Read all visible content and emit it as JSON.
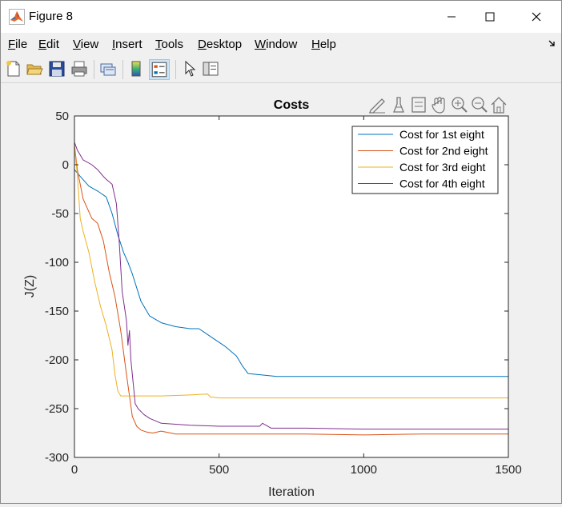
{
  "window": {
    "title": "Figure 8"
  },
  "menu": [
    {
      "label": "File",
      "accel": "F",
      "rest": "ile"
    },
    {
      "label": "Edit",
      "accel": "E",
      "rest": "dit"
    },
    {
      "label": "View",
      "accel": "V",
      "rest": "iew"
    },
    {
      "label": "Insert",
      "accel": "I",
      "rest": "nsert"
    },
    {
      "label": "Tools",
      "accel": "T",
      "rest": "ools"
    },
    {
      "label": "Desktop",
      "accel": "D",
      "rest": "esktop"
    },
    {
      "label": "Window",
      "accel": "W",
      "rest": "indow"
    },
    {
      "label": "Help",
      "accel": "H",
      "rest": "elp"
    }
  ],
  "toolbar": {
    "icons": [
      "new-figure-icon",
      "open-file-icon",
      "save-icon",
      "print-icon",
      "link-plot-icon",
      "colorbar-icon",
      "legend-icon",
      "pointer-icon",
      "property-inspector-icon"
    ]
  },
  "axes_toolbar": {
    "icons": [
      "edit-plot-icon",
      "brush-icon",
      "data-tips-icon",
      "pan-icon",
      "zoom-in-icon",
      "zoom-out-icon",
      "restore-view-icon"
    ]
  },
  "chart_data": {
    "type": "line",
    "title": "Costs",
    "xlabel": "Iteration",
    "ylabel": "J(Z)",
    "xlim": [
      0,
      1500
    ],
    "ylim": [
      -300,
      50
    ],
    "xticks": [
      0,
      500,
      1000,
      1500
    ],
    "yticks": [
      50,
      0,
      -50,
      -100,
      -150,
      -200,
      -250,
      -300
    ],
    "grid": false,
    "legend_position": "top-right",
    "series": [
      {
        "name": "Cost for 1st eight",
        "color": "#0072BD",
        "x": [
          0,
          20,
          50,
          80,
          110,
          130,
          150,
          170,
          185,
          200,
          230,
          260,
          300,
          350,
          400,
          430,
          450,
          480,
          520,
          560,
          580,
          600,
          700,
          900,
          1100,
          1300,
          1500
        ],
        "y": [
          -5,
          -12,
          -22,
          -27,
          -33,
          -50,
          -72,
          -90,
          -100,
          -112,
          -140,
          -155,
          -162,
          -166,
          -168,
          -168,
          -172,
          -178,
          -186,
          -196,
          -206,
          -214,
          -217,
          -217,
          -217,
          -217,
          -217
        ]
      },
      {
        "name": "Cost for 2nd eight",
        "color": "#D95319",
        "x": [
          0,
          10,
          30,
          60,
          80,
          100,
          120,
          140,
          160,
          180,
          200,
          215,
          230,
          250,
          270,
          300,
          350,
          400,
          600,
          800,
          1000,
          1200,
          1500
        ],
        "y": [
          20,
          -5,
          -35,
          -55,
          -60,
          -78,
          -110,
          -135,
          -170,
          -215,
          -258,
          -268,
          -272,
          -274,
          -275,
          -273,
          -276,
          -276,
          -276,
          -276,
          -277,
          -276,
          -276
        ]
      },
      {
        "name": "Cost for 3rd eight",
        "color": "#EDB120",
        "x": [
          0,
          10,
          20,
          30,
          50,
          70,
          90,
          110,
          130,
          140,
          150,
          160,
          170,
          200,
          300,
          400,
          460,
          470,
          500,
          700,
          1000,
          1500
        ],
        "y": [
          18,
          -10,
          -55,
          -68,
          -90,
          -120,
          -145,
          -165,
          -190,
          -215,
          -232,
          -237,
          -237,
          -237,
          -237,
          -236,
          -235,
          -238,
          -239,
          -239,
          -239,
          -239
        ]
      },
      {
        "name": "Cost for 4th eight",
        "color": "#7E2F8E",
        "x": [
          0,
          10,
          30,
          60,
          80,
          100,
          110,
          130,
          145,
          155,
          165,
          175,
          180,
          185,
          190,
          195,
          200,
          205,
          210,
          220,
          240,
          260,
          300,
          400,
          500,
          600,
          640,
          650,
          680,
          800,
          1000,
          1200,
          1500
        ],
        "y": [
          23,
          15,
          5,
          0,
          -5,
          -12,
          -15,
          -20,
          -40,
          -80,
          -130,
          -150,
          -160,
          -185,
          -170,
          -200,
          -215,
          -230,
          -245,
          -250,
          -256,
          -260,
          -265,
          -267,
          -268,
          -268,
          -268,
          -265,
          -270,
          -270,
          -271,
          -271,
          -271
        ]
      }
    ]
  }
}
